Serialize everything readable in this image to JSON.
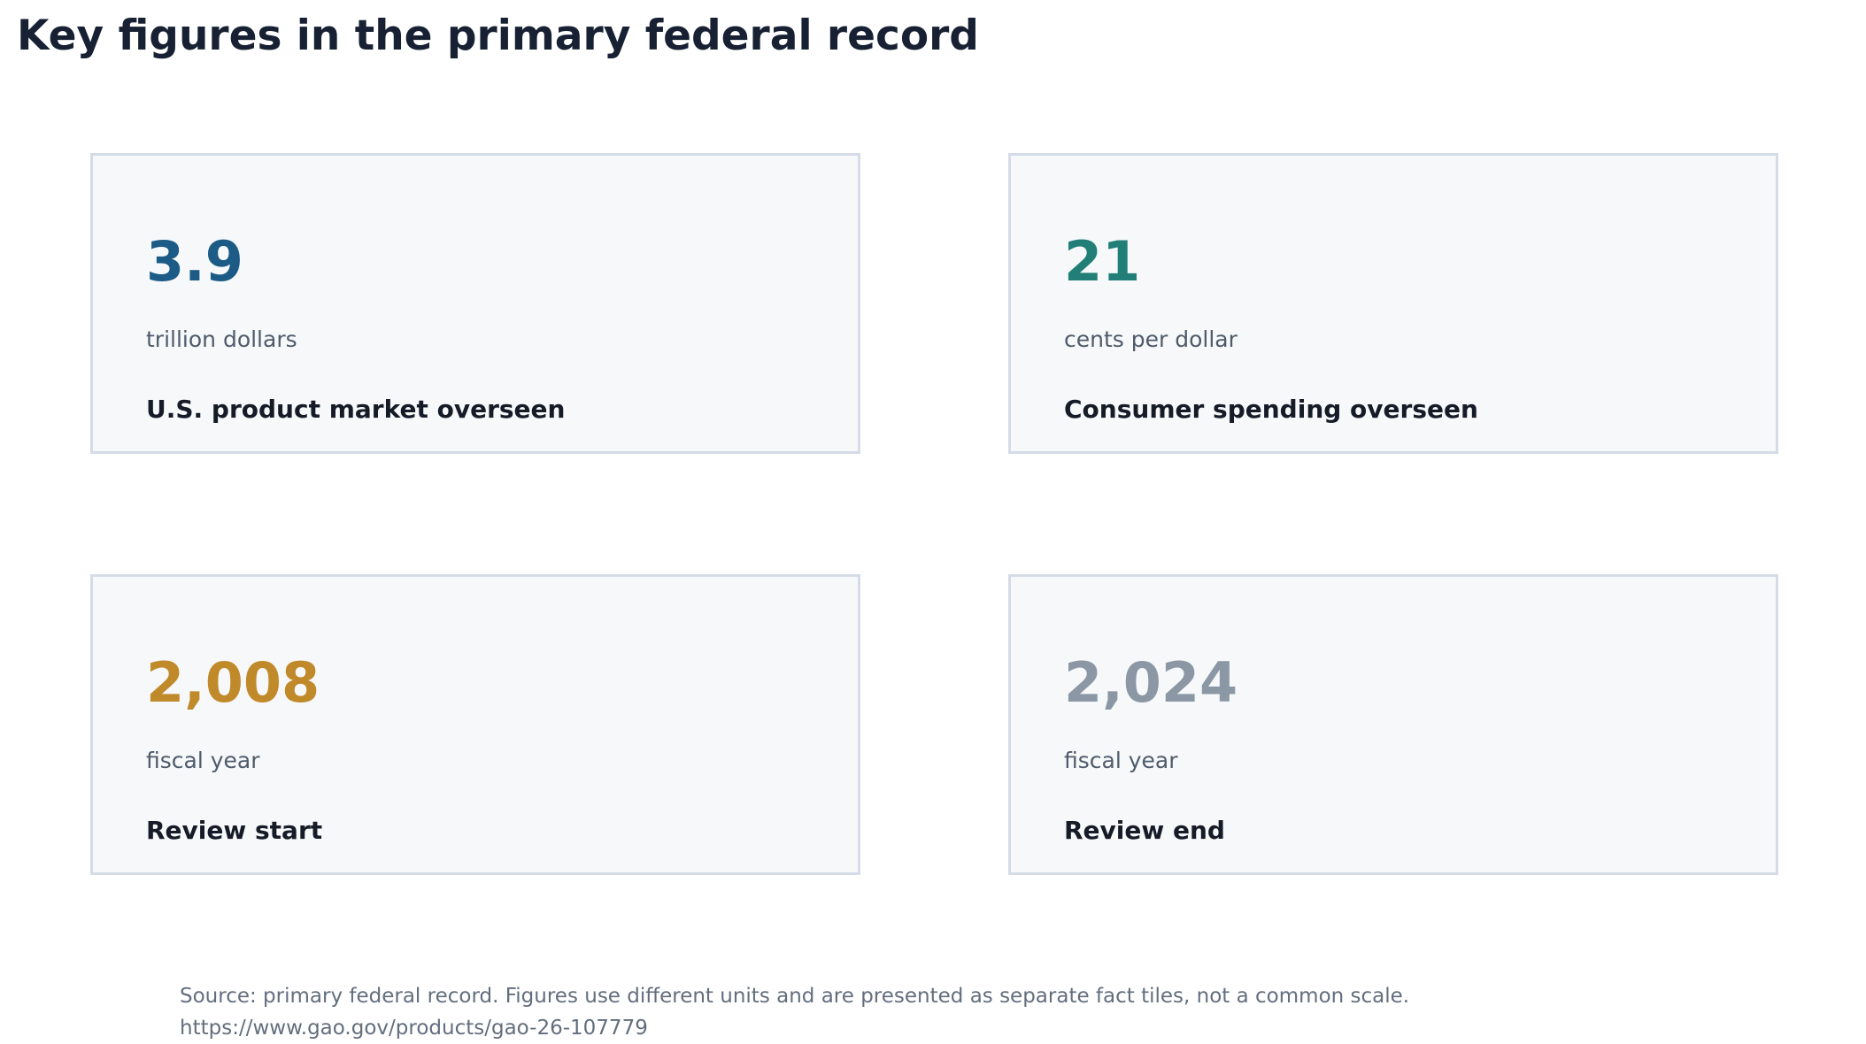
{
  "title": "Key figures in the primary federal record",
  "chart_data": {
    "type": "table",
    "title": "Key figures in the primary federal record",
    "tiles": [
      {
        "value": 3.9,
        "value_text": "3.9",
        "unit": "trillion dollars",
        "label": "U.S. product market overseen",
        "color": "#1c5b85"
      },
      {
        "value": 21,
        "value_text": "21",
        "unit": "cents per dollar",
        "label": "Consumer spending overseen",
        "color": "#227f78"
      },
      {
        "value": 2008,
        "value_text": "2,008",
        "unit": "fiscal year",
        "label": "Review start",
        "color": "#c08a2a"
      },
      {
        "value": 2024,
        "value_text": "2,024",
        "unit": "fiscal year",
        "label": "Review end",
        "color": "#8b97a4"
      }
    ],
    "source_line": "Source: primary federal record. Figures use different units and are presented as separate fact tiles, not a common scale.",
    "source_url": "https://www.gao.gov/products/gao-26-107779"
  }
}
